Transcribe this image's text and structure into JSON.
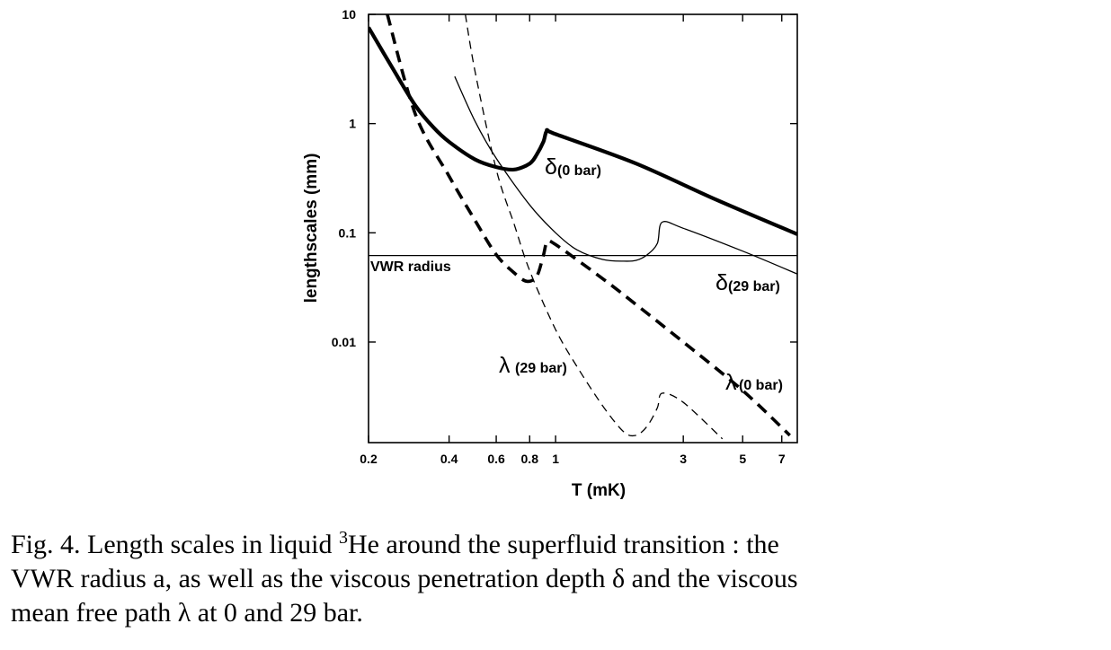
{
  "chart_data": {
    "type": "line",
    "xlabel": "T (mK)",
    "ylabel": "lengthscales (mm)",
    "x_scale": "log",
    "y_scale": "log",
    "xlim": [
      0.2,
      8.0
    ],
    "ylim": [
      0.0012,
      10
    ],
    "x_ticks": [
      0.2,
      0.4,
      0.6,
      0.8,
      1,
      3,
      5,
      7
    ],
    "x_tick_labels": [
      "0.2",
      "0.4",
      "0.6",
      "0.8",
      "1",
      "3",
      "5",
      "7"
    ],
    "y_ticks": [
      0.01,
      0.1,
      1,
      10
    ],
    "y_tick_labels": [
      "0.01",
      "0.1",
      "1",
      "10"
    ],
    "grid": false,
    "series": [
      {
        "name": "δ(0 bar)",
        "style": "thick-solid",
        "x": [
          0.2,
          0.25,
          0.3,
          0.35,
          0.4,
          0.5,
          0.6,
          0.7,
          0.8,
          0.85,
          0.9,
          0.93,
          1.0,
          2.0,
          4.0,
          8.0
        ],
        "y": [
          7.6,
          3.0,
          1.45,
          0.92,
          0.68,
          0.47,
          0.4,
          0.38,
          0.43,
          0.52,
          0.68,
          0.86,
          0.8,
          0.43,
          0.2,
          0.097
        ]
      },
      {
        "name": "δ(29 bar)",
        "style": "thin-solid",
        "x": [
          0.42,
          0.5,
          0.6,
          0.8,
          1.0,
          1.2,
          1.5,
          1.8,
          2.0,
          2.2,
          2.4,
          2.5,
          3.0,
          5.0,
          8.0
        ],
        "y": [
          2.7,
          1.05,
          0.48,
          0.18,
          0.1,
          0.07,
          0.057,
          0.055,
          0.056,
          0.063,
          0.08,
          0.125,
          0.11,
          0.068,
          0.042
        ]
      },
      {
        "name": "VWR radius",
        "style": "thin-solid",
        "x": [
          0.2,
          8.0
        ],
        "y": [
          0.062,
          0.062
        ]
      },
      {
        "name": "λ(0 bar)",
        "style": "thick-dashed",
        "x": [
          0.235,
          0.3,
          0.4,
          0.5,
          0.6,
          0.7,
          0.78,
          0.85,
          0.9,
          0.93,
          1.0,
          1.5,
          2.0,
          3.0,
          5.0,
          7.5
        ],
        "y": [
          10.0,
          1.2,
          0.33,
          0.13,
          0.063,
          0.043,
          0.036,
          0.04,
          0.062,
          0.082,
          0.078,
          0.038,
          0.022,
          0.01,
          0.0036,
          0.0014
        ]
      },
      {
        "name": "λ (29 bar)",
        "style": "thin-dashed",
        "x": [
          0.46,
          0.5,
          0.6,
          0.7,
          0.8,
          1.0,
          1.2,
          1.5,
          1.8,
          2.0,
          2.2,
          2.4,
          2.5,
          3.0,
          4.2
        ],
        "y": [
          10.0,
          3.0,
          0.38,
          0.12,
          0.045,
          0.013,
          0.006,
          0.0026,
          0.0015,
          0.0014,
          0.0017,
          0.0025,
          0.0034,
          0.0028,
          0.0013
        ]
      }
    ],
    "annotations": [
      {
        "greek": "δ",
        "text": "(0  bar)"
      },
      {
        "greek": "δ",
        "text": "(29  bar)"
      },
      {
        "text": "VWR radius"
      },
      {
        "greek": "λ",
        "text": "(29 bar)"
      },
      {
        "greek": "λ",
        "text": "(0 bar)"
      }
    ]
  },
  "caption": {
    "line1_a": "Fig.  4.  Length scales in liquid ",
    "line1_sup": "3",
    "line1_b": "He around the superfluid transition :  the",
    "line2": "VWR radius a, as well as the viscous penetration depth δ and the viscous",
    "line3": "mean free path λ at 0 and 29 bar."
  }
}
